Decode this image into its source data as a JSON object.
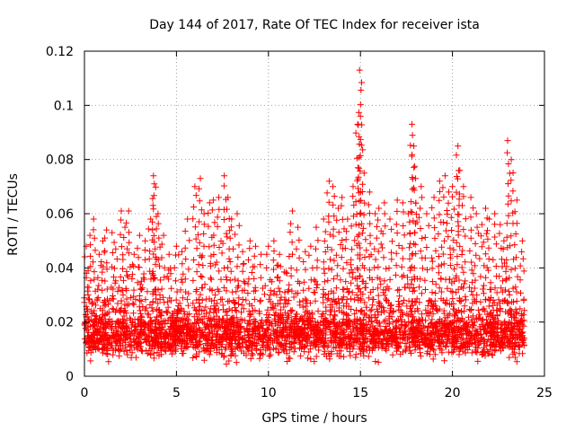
{
  "chart_data": {
    "type": "scatter",
    "title": "Day 144 of 2017, Rate Of TEC Index for receiver ista",
    "xlabel": "GPS time / hours",
    "ylabel": "ROTI / TECUs",
    "xlim": [
      0,
      25
    ],
    "ylim": [
      0,
      0.12
    ],
    "x_ticks": [
      0,
      5,
      10,
      15,
      20,
      25
    ],
    "x_tick_labels": [
      "0",
      "5",
      "10",
      "15",
      "20",
      "25"
    ],
    "y_ticks": [
      0,
      0.02,
      0.04,
      0.06,
      0.08,
      0.1,
      0.12
    ],
    "y_tick_labels": [
      "0",
      "0.02",
      "0.04",
      "0.06",
      "0.08",
      "0.1",
      "0.12"
    ],
    "grid": true,
    "marker": "+",
    "color": "#ff0000",
    "series": [
      {
        "name": "ROTI",
        "x": [
          0.1,
          0.3,
          0.5,
          0.8,
          1.0,
          1.2,
          1.5,
          1.7,
          2.0,
          2.2,
          2.4,
          2.7,
          3.0,
          3.3,
          3.6,
          3.75,
          3.8,
          4.0,
          4.3,
          4.6,
          5.0,
          5.3,
          5.6,
          6.0,
          6.3,
          6.5,
          6.8,
          7.0,
          7.3,
          7.6,
          7.8,
          8.0,
          8.3,
          8.6,
          9.0,
          9.3,
          9.6,
          10.0,
          10.3,
          10.6,
          11.0,
          11.3,
          11.6,
          12.0,
          12.3,
          12.6,
          13.0,
          13.3,
          13.5,
          13.8,
          14.0,
          14.3,
          14.6,
          14.85,
          14.95,
          15.0,
          15.2,
          15.5,
          15.8,
          16.0,
          16.3,
          16.6,
          17.0,
          17.3,
          17.6,
          17.8,
          17.9,
          18.0,
          18.3,
          18.6,
          19.0,
          19.3,
          19.6,
          19.8,
          20.0,
          20.3,
          20.4,
          20.6,
          21.0,
          21.3,
          21.6,
          21.8,
          22.0,
          22.3,
          22.6,
          22.8,
          23.0,
          23.2,
          23.5,
          23.8,
          0.2,
          1.1,
          2.1,
          3.1,
          4.1,
          5.1,
          6.1,
          7.1,
          8.1,
          9.1,
          10.1,
          11.1,
          12.1,
          13.1,
          14.1,
          15.1,
          16.1,
          17.1,
          18.1,
          19.1,
          20.1,
          21.1,
          22.1,
          23.1
        ],
        "y": [
          0.048,
          0.052,
          0.058,
          0.045,
          0.05,
          0.054,
          0.053,
          0.047,
          0.061,
          0.055,
          0.061,
          0.045,
          0.052,
          0.05,
          0.058,
          0.074,
          0.071,
          0.06,
          0.052,
          0.045,
          0.048,
          0.046,
          0.058,
          0.07,
          0.073,
          0.06,
          0.064,
          0.065,
          0.066,
          0.074,
          0.066,
          0.058,
          0.06,
          0.046,
          0.05,
          0.048,
          0.045,
          0.048,
          0.05,
          0.045,
          0.038,
          0.061,
          0.055,
          0.046,
          0.048,
          0.055,
          0.058,
          0.072,
          0.07,
          0.062,
          0.066,
          0.058,
          0.07,
          0.093,
          0.113,
          0.096,
          0.075,
          0.068,
          0.06,
          0.062,
          0.064,
          0.058,
          0.065,
          0.064,
          0.06,
          0.093,
          0.085,
          0.073,
          0.07,
          0.06,
          0.066,
          0.072,
          0.074,
          0.068,
          0.07,
          0.085,
          0.076,
          0.07,
          0.066,
          0.06,
          0.056,
          0.062,
          0.058,
          0.06,
          0.056,
          0.05,
          0.087,
          0.08,
          0.065,
          0.05,
          0.03,
          0.028,
          0.03,
          0.032,
          0.03,
          0.026,
          0.032,
          0.03,
          0.028,
          0.026,
          0.03,
          0.028,
          0.027,
          0.03,
          0.032,
          0.035,
          0.034,
          0.032,
          0.036,
          0.034,
          0.035,
          0.03,
          0.032,
          0.03
        ]
      }
    ],
    "background_cloud": {
      "x_range": [
        0,
        23.9
      ],
      "y_range": [
        0.004,
        0.025
      ],
      "typical_y": 0.014
    }
  }
}
